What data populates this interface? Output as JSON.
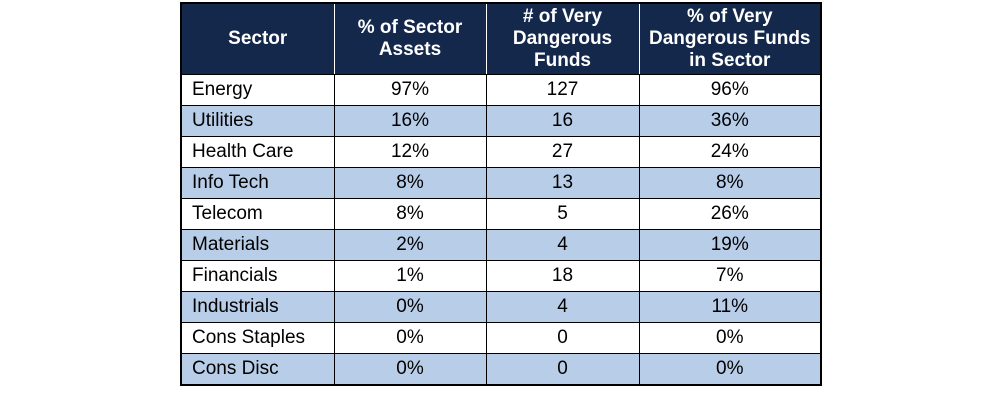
{
  "table": {
    "headers": [
      "Sector",
      "% of Sector Assets",
      "# of Very Dangerous Funds",
      "% of Very Dangerous Funds in Sector"
    ],
    "rows": [
      [
        "Energy",
        "97%",
        "127",
        "96%"
      ],
      [
        "Utilities",
        "16%",
        "16",
        "36%"
      ],
      [
        "Health Care",
        "12%",
        "27",
        "24%"
      ],
      [
        "Info Tech",
        "8%",
        "13",
        "8%"
      ],
      [
        "Telecom",
        "8%",
        "5",
        "26%"
      ],
      [
        "Materials",
        "2%",
        "4",
        "19%"
      ],
      [
        "Financials",
        "1%",
        "18",
        "7%"
      ],
      [
        "Industrials",
        "0%",
        "4",
        "11%"
      ],
      [
        "Cons Staples",
        "0%",
        "0",
        "0%"
      ],
      [
        "Cons Disc",
        "0%",
        "0",
        "0%"
      ]
    ]
  },
  "colors": {
    "header_bg": "#14284b",
    "header_text": "#ffffff",
    "shaded_row": "#b8cde8"
  }
}
